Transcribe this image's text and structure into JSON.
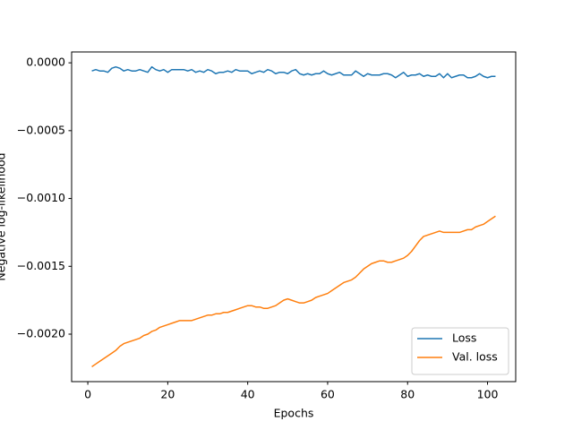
{
  "chart_data": {
    "type": "line",
    "xlabel": "Epochs",
    "ylabel": "Negative log-likelihood",
    "x": [
      1,
      2,
      3,
      4,
      5,
      6,
      7,
      8,
      9,
      10,
      11,
      12,
      13,
      14,
      15,
      16,
      17,
      18,
      19,
      20,
      21,
      22,
      23,
      24,
      25,
      26,
      27,
      28,
      29,
      30,
      31,
      32,
      33,
      34,
      35,
      36,
      37,
      38,
      39,
      40,
      41,
      42,
      43,
      44,
      45,
      46,
      47,
      48,
      49,
      50,
      51,
      52,
      53,
      54,
      55,
      56,
      57,
      58,
      59,
      60,
      61,
      62,
      63,
      64,
      65,
      66,
      67,
      68,
      69,
      70,
      71,
      72,
      73,
      74,
      75,
      76,
      77,
      78,
      79,
      80,
      81,
      82,
      83,
      84,
      85,
      86,
      87,
      88,
      89,
      90,
      91,
      92,
      93,
      94,
      95,
      96,
      97,
      98,
      99,
      100,
      101,
      102
    ],
    "series": [
      {
        "name": "Loss",
        "color": "#1f77b4",
        "values": [
          -6e-05,
          -5e-05,
          -6e-05,
          -6e-05,
          -7e-05,
          -4e-05,
          -3e-05,
          -4e-05,
          -6e-05,
          -5e-05,
          -6e-05,
          -6e-05,
          -5e-05,
          -6e-05,
          -7e-05,
          -3e-05,
          -5e-05,
          -6e-05,
          -5e-05,
          -7e-05,
          -5e-05,
          -5e-05,
          -5e-05,
          -5e-05,
          -6e-05,
          -5e-05,
          -7e-05,
          -6e-05,
          -7e-05,
          -5e-05,
          -6e-05,
          -8e-05,
          -7e-05,
          -7e-05,
          -6e-05,
          -7e-05,
          -5e-05,
          -6e-05,
          -6e-05,
          -6e-05,
          -8e-05,
          -7e-05,
          -6e-05,
          -7e-05,
          -5e-05,
          -6e-05,
          -8e-05,
          -7e-05,
          -7e-05,
          -8e-05,
          -6e-05,
          -5e-05,
          -8e-05,
          -9e-05,
          -8e-05,
          -9e-05,
          -8e-05,
          -8e-05,
          -6e-05,
          -8e-05,
          -9e-05,
          -8e-05,
          -7e-05,
          -9e-05,
          -9e-05,
          -9e-05,
          -6e-05,
          -8e-05,
          -0.0001,
          -8e-05,
          -9e-05,
          -9e-05,
          -9e-05,
          -8e-05,
          -8e-05,
          -9e-05,
          -0.00011,
          -9e-05,
          -7e-05,
          -0.0001,
          -9e-05,
          -9e-05,
          -8e-05,
          -0.0001,
          -9e-05,
          -0.0001,
          -0.0001,
          -8e-05,
          -0.00011,
          -8e-05,
          -0.00011,
          -0.0001,
          -9e-05,
          -9e-05,
          -0.00011,
          -0.00011,
          -0.0001,
          -8e-05,
          -0.0001,
          -0.00011,
          -0.0001,
          -0.0001
        ]
      },
      {
        "name": "Val. loss",
        "color": "#ff7f0e",
        "values": [
          -0.00224,
          -0.00222,
          -0.0022,
          -0.00218,
          -0.00216,
          -0.00214,
          -0.00212,
          -0.00209,
          -0.00207,
          -0.00206,
          -0.00205,
          -0.00204,
          -0.00203,
          -0.00201,
          -0.002,
          -0.00198,
          -0.00197,
          -0.00195,
          -0.00194,
          -0.00193,
          -0.00192,
          -0.00191,
          -0.0019,
          -0.0019,
          -0.0019,
          -0.0019,
          -0.00189,
          -0.00188,
          -0.00187,
          -0.00186,
          -0.00186,
          -0.00185,
          -0.00185,
          -0.00184,
          -0.00184,
          -0.00183,
          -0.00182,
          -0.00181,
          -0.0018,
          -0.00179,
          -0.00179,
          -0.0018,
          -0.0018,
          -0.00181,
          -0.00181,
          -0.0018,
          -0.00179,
          -0.00177,
          -0.00175,
          -0.00174,
          -0.00175,
          -0.00176,
          -0.00177,
          -0.00177,
          -0.00176,
          -0.00175,
          -0.00173,
          -0.00172,
          -0.00171,
          -0.0017,
          -0.00168,
          -0.00166,
          -0.00164,
          -0.00162,
          -0.00161,
          -0.0016,
          -0.00158,
          -0.00155,
          -0.00152,
          -0.0015,
          -0.00148,
          -0.00147,
          -0.00146,
          -0.00146,
          -0.00147,
          -0.00147,
          -0.00146,
          -0.00145,
          -0.00144,
          -0.00142,
          -0.00139,
          -0.00135,
          -0.00131,
          -0.00128,
          -0.00127,
          -0.00126,
          -0.00125,
          -0.00124,
          -0.00125,
          -0.00125,
          -0.00125,
          -0.00125,
          -0.00125,
          -0.00124,
          -0.00123,
          -0.00123,
          -0.00121,
          -0.0012,
          -0.00119,
          -0.00117,
          -0.00115,
          -0.00113
        ]
      }
    ],
    "xlim": [
      -4.05,
      107.05
    ],
    "xticks": [
      0,
      20,
      40,
      60,
      80,
      100
    ],
    "ylim": [
      -0.00235,
      8e-05
    ],
    "yticks": [
      {
        "value": 0,
        "label": "0.0000"
      },
      {
        "value": -0.0005,
        "label": "−0.0005"
      },
      {
        "value": -0.001,
        "label": "−0.0010"
      },
      {
        "value": -0.0015,
        "label": "−0.0015"
      },
      {
        "value": -0.002,
        "label": "−0.0020"
      }
    ],
    "legend": "lower right"
  }
}
